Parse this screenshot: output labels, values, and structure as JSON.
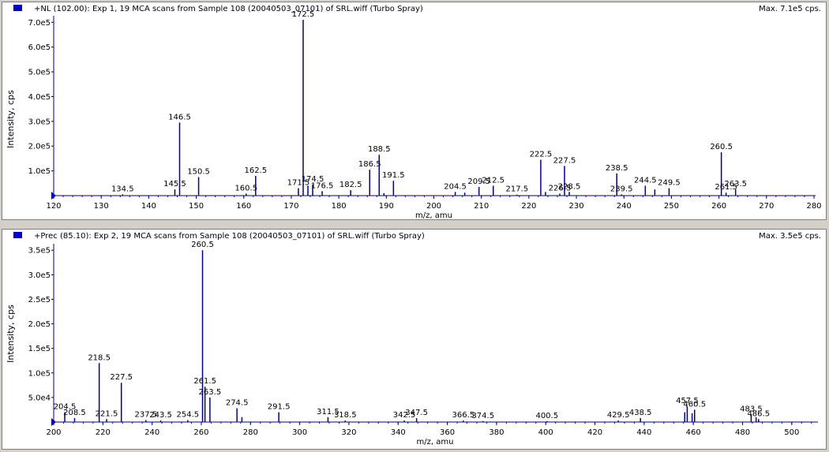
{
  "colors": {
    "bar": "#00008b",
    "axis": "#000080",
    "marker": "#0000cc"
  },
  "panels": [
    {
      "title": "+NL (102.00): Exp 1, 19 MCA scans from Sample 108 (20040503_07101) of SRL.wiff (Turbo Spray)",
      "max": "Max. 7.1e5 cps."
    },
    {
      "title": "+Prec (85.10): Exp 2, 19 MCA scans from Sample 108 (20040503_07101) of SRL.wiff (Turbo Spray)",
      "max": "Max. 3.5e5 cps."
    }
  ],
  "chart_data": [
    {
      "type": "bar",
      "xlabel": "m/z, amu",
      "ylabel": "Intensity, cps",
      "xlim": [
        120,
        280
      ],
      "ylim": [
        0,
        720000
      ],
      "xticks": [
        120,
        130,
        140,
        150,
        160,
        170,
        180,
        190,
        200,
        210,
        220,
        230,
        240,
        250,
        260,
        270,
        280
      ],
      "yticks": [
        100000,
        200000,
        300000,
        400000,
        500000,
        600000,
        700000
      ],
      "ytick_labels": [
        "1.0e5",
        "2.0e5",
        "3.0e5",
        "4.0e5",
        "5.0e5",
        "6.0e5",
        "7.0e5"
      ],
      "peaks": [
        {
          "x": 134.5,
          "y": 5000,
          "label": "134.5"
        },
        {
          "x": 145.5,
          "y": 25000,
          "label": "145.5"
        },
        {
          "x": 146.5,
          "y": 295000,
          "label": "146.5"
        },
        {
          "x": 150.5,
          "y": 75000,
          "label": "150.5"
        },
        {
          "x": 160.5,
          "y": 8000,
          "label": "160.5"
        },
        {
          "x": 162.5,
          "y": 80000,
          "label": "162.5"
        },
        {
          "x": 171.5,
          "y": 30000,
          "label": "171.5"
        },
        {
          "x": 172.5,
          "y": 710000,
          "label": "172.5"
        },
        {
          "x": 173.5,
          "y": 40000
        },
        {
          "x": 174.5,
          "y": 45000,
          "label": "174.5"
        },
        {
          "x": 176.5,
          "y": 18000,
          "label": "176.5"
        },
        {
          "x": 182.5,
          "y": 22000,
          "label": "182.5"
        },
        {
          "x": 186.5,
          "y": 105000,
          "label": "186.5"
        },
        {
          "x": 188.5,
          "y": 165000,
          "label": "188.5"
        },
        {
          "x": 189.5,
          "y": 10000
        },
        {
          "x": 191.5,
          "y": 60000,
          "label": "191.5"
        },
        {
          "x": 204.5,
          "y": 15000,
          "label": "204.5"
        },
        {
          "x": 206.5,
          "y": 12000
        },
        {
          "x": 209.5,
          "y": 35000,
          "label": "209.5"
        },
        {
          "x": 212.5,
          "y": 40000,
          "label": "212.5"
        },
        {
          "x": 217.5,
          "y": 4000,
          "label": "217.5"
        },
        {
          "x": 222.5,
          "y": 145000,
          "label": "222.5"
        },
        {
          "x": 223.5,
          "y": 15000
        },
        {
          "x": 226.5,
          "y": 8000,
          "label": "226.5"
        },
        {
          "x": 227.5,
          "y": 120000,
          "label": "227.5"
        },
        {
          "x": 228.5,
          "y": 15000,
          "label": "228.5"
        },
        {
          "x": 238.5,
          "y": 90000,
          "label": "238.5"
        },
        {
          "x": 239.5,
          "y": 5000,
          "label": "239.5"
        },
        {
          "x": 244.5,
          "y": 40000,
          "label": "244.5"
        },
        {
          "x": 246.5,
          "y": 25000
        },
        {
          "x": 249.5,
          "y": 30000,
          "label": "249.5"
        },
        {
          "x": 260.5,
          "y": 175000,
          "label": "260.5"
        },
        {
          "x": 261.5,
          "y": 12000,
          "label": "261.5"
        },
        {
          "x": 263.5,
          "y": 25000,
          "label": "263.5"
        }
      ]
    },
    {
      "type": "bar",
      "xlabel": "m/z, amu",
      "ylabel": "Intensity, cps",
      "xlim": [
        200,
        510
      ],
      "ylim": [
        0,
        360000
      ],
      "xticks": [
        200,
        220,
        240,
        260,
        280,
        300,
        320,
        340,
        360,
        380,
        400,
        420,
        440,
        460,
        480,
        500
      ],
      "yticks": [
        50000,
        100000,
        150000,
        200000,
        250000,
        300000,
        350000
      ],
      "ytick_labels": [
        "5.0e4",
        "1.0e5",
        "1.5e5",
        "2.0e5",
        "2.5e5",
        "3.0e5",
        "3.5e5"
      ],
      "peaks": [
        {
          "x": 204.5,
          "y": 20000,
          "label": "204.5"
        },
        {
          "x": 208.5,
          "y": 8000,
          "label": "208.5"
        },
        {
          "x": 218.5,
          "y": 120000,
          "label": "218.5"
        },
        {
          "x": 221.5,
          "y": 6000,
          "label": "221.5"
        },
        {
          "x": 227.5,
          "y": 80000,
          "label": "227.5"
        },
        {
          "x": 237.5,
          "y": 4000,
          "label": "237.5"
        },
        {
          "x": 243.5,
          "y": 3000,
          "label": "243.5"
        },
        {
          "x": 254.5,
          "y": 4000,
          "label": "254.5"
        },
        {
          "x": 260.5,
          "y": 350000,
          "label": "260.5"
        },
        {
          "x": 261.5,
          "y": 72000,
          "label": "261.5"
        },
        {
          "x": 263.5,
          "y": 50000,
          "label": "263.5"
        },
        {
          "x": 274.5,
          "y": 28000,
          "label": "274.5"
        },
        {
          "x": 276.5,
          "y": 10000
        },
        {
          "x": 291.5,
          "y": 20000,
          "label": "291.5"
        },
        {
          "x": 311.5,
          "y": 10000,
          "label": "311.5"
        },
        {
          "x": 318.5,
          "y": 3000,
          "label": "318.5"
        },
        {
          "x": 342.5,
          "y": 3000,
          "label": "342.5"
        },
        {
          "x": 347.5,
          "y": 8000,
          "label": "347.5"
        },
        {
          "x": 366.5,
          "y": 3000,
          "label": "366.5"
        },
        {
          "x": 374.5,
          "y": 2000,
          "label": "374.5"
        },
        {
          "x": 400.5,
          "y": 2000,
          "label": "400.5"
        },
        {
          "x": 429.5,
          "y": 3000,
          "label": "429.5"
        },
        {
          "x": 438.5,
          "y": 8000,
          "label": "438.5"
        },
        {
          "x": 456.5,
          "y": 20000
        },
        {
          "x": 457.5,
          "y": 32000,
          "label": "457.5"
        },
        {
          "x": 459.5,
          "y": 18000
        },
        {
          "x": 460.5,
          "y": 25000,
          "label": "460.5"
        },
        {
          "x": 483.5,
          "y": 15000,
          "label": "483.5"
        },
        {
          "x": 485.5,
          "y": 10000
        },
        {
          "x": 486.5,
          "y": 6000,
          "label": "486.5"
        }
      ]
    }
  ]
}
